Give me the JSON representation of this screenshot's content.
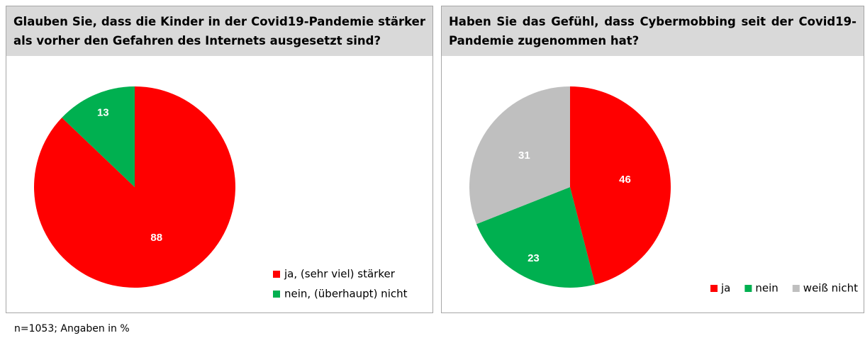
{
  "chart_data": [
    {
      "type": "pie",
      "title": "Glauben Sie, dass die Kinder in der Covid19-Pandemie stärker als vorher den Gefahren des Internets ausgesetzt sind?",
      "categories": [
        "ja, (sehr viel) stärker",
        "nein, (überhaupt) nicht"
      ],
      "values": [
        88,
        13
      ],
      "colors": [
        "#ff0000",
        "#00b050"
      ],
      "legend": "bottom-right",
      "legend_orientation": "vertical"
    },
    {
      "type": "pie",
      "title": "Haben Sie das Gefühl, dass Cybermobbing seit der Covid19-Pandemie zugenommen hat?",
      "categories": [
        "ja",
        "nein",
        "weiß nicht"
      ],
      "values": [
        46,
        23,
        31
      ],
      "colors": [
        "#ff0000",
        "#00b050",
        "#bfbfbf"
      ],
      "legend": "bottom-right",
      "legend_orientation": "horizontal"
    }
  ],
  "footnote": "n=1053; Angaben in %"
}
